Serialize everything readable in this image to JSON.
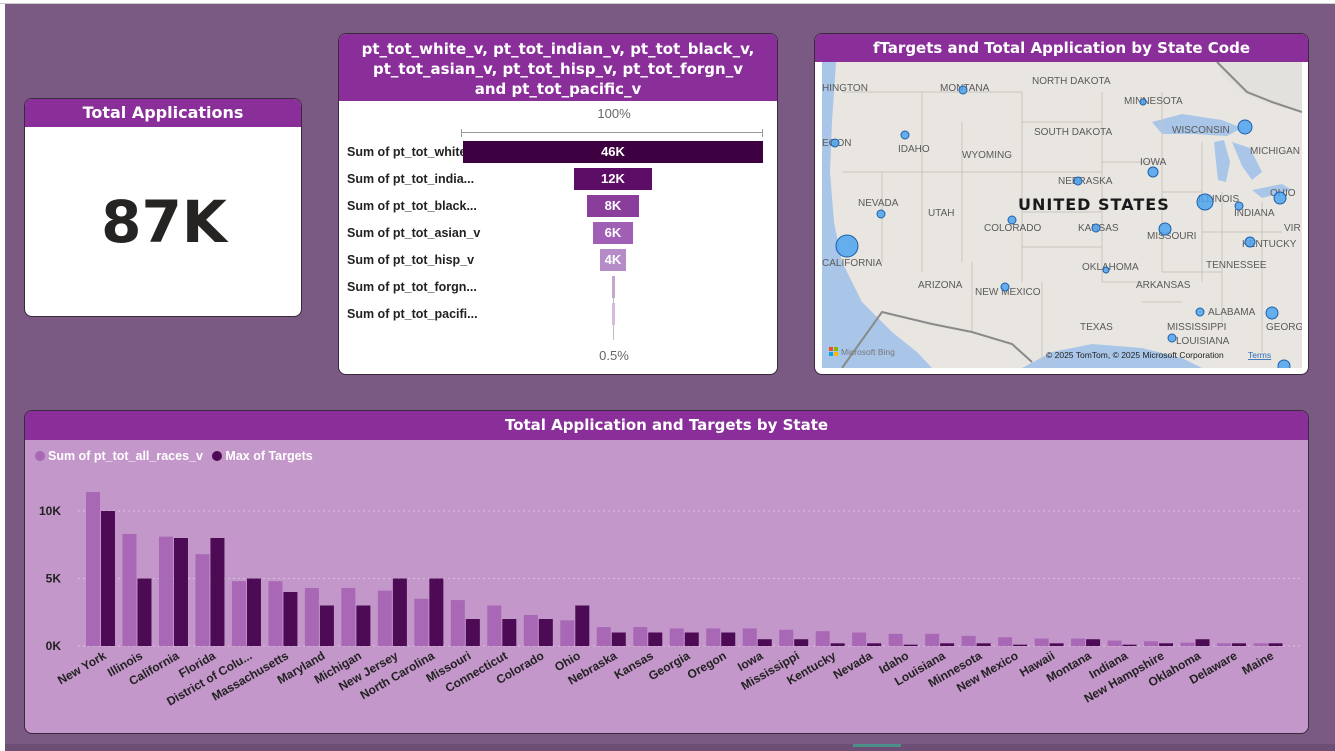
{
  "kpi": {
    "title": "Total Applications",
    "value": "87K"
  },
  "funnel": {
    "title": "pt_tot_white_v, pt_tot_indian_v, pt_tot_black_v, pt_tot_asian_v, pt_tot_hisp_v, pt_tot_forgn_v and pt_tot_pacific_v",
    "top_pct": "100%",
    "bottom_pct": "0.5%",
    "colors": [
      "#3d0040",
      "#5e0d67",
      "#8a3d9b",
      "#a05fb4",
      "#b58cc8",
      "#c5a6d1",
      "#d3bcdc"
    ],
    "rows": [
      {
        "label": "Sum of pt_tot_white...",
        "value": 46000,
        "display": "46K"
      },
      {
        "label": "Sum of pt_tot_india...",
        "value": 12000,
        "display": "12K"
      },
      {
        "label": "Sum of pt_tot_black...",
        "value": 8000,
        "display": "8K"
      },
      {
        "label": "Sum of pt_tot_asian_v",
        "value": 6000,
        "display": "6K"
      },
      {
        "label": "Sum of pt_tot_hisp_v",
        "value": 4000,
        "display": "4K"
      },
      {
        "label": "Sum of pt_tot_forgn...",
        "value": 230,
        "display": ""
      },
      {
        "label": "Sum of pt_tot_pacifi...",
        "value": 120,
        "display": ""
      }
    ]
  },
  "map": {
    "title": "fTargets and Total Application by State Code",
    "country_label": "UNITED STATES",
    "attribution": "© 2025 TomTom, © 2025 Microsoft Corporation",
    "terms": "Terms",
    "provider": "Microsoft Bing",
    "states": [
      "HINGTON",
      "MONTANA",
      "NORTH DAKOTA",
      "MINNESOTA",
      "SOUTH DAKOTA",
      "WISCONSIN",
      "MICHIGAN",
      "EGON",
      "IDAHO",
      "WYOMING",
      "IOWA",
      "NEBRASKA",
      "NEVADA",
      "UTAH",
      "COLORADO",
      "KANSAS",
      "MISSOURI",
      "ILLINOIS",
      "INDIANA",
      "OHIO",
      "CALIFORNIA",
      "KENTUCKY",
      "VIR",
      "OKLAHOMA",
      "TENNESSEE",
      "ARIZONA",
      "NEW MEXICO",
      "ARKANSAS",
      "ALABAMA",
      "GEORGIA",
      "MISSISSIPPI",
      "TEXAS",
      "LOUISIANA"
    ]
  },
  "chart_data": {
    "type": "bar",
    "title": "Total Application and Targets by State",
    "ylim": [
      0,
      12000
    ],
    "yticks": [
      "10K",
      "5K",
      "0K"
    ],
    "legend_position": "top-left",
    "categories": [
      "New York",
      "Illinois",
      "California",
      "Florida",
      "District of Colu...",
      "Massachusetts",
      "Maryland",
      "Michigan",
      "New Jersey",
      "North Carolina",
      "Missouri",
      "Connecticut",
      "Colorado",
      "Ohio",
      "Nebraska",
      "Kansas",
      "Georgia",
      "Oregon",
      "Iowa",
      "Mississippi",
      "Kentucky",
      "Nevada",
      "Idaho",
      "Louisiana",
      "Minnesota",
      "New Mexico",
      "Hawaii",
      "Montana",
      "Indiana",
      "New Hampshire",
      "Oklahoma",
      "Delaware",
      "Maine"
    ],
    "series": [
      {
        "name": "Sum of pt_tot_all_races_v",
        "color": "#a868b6",
        "values": [
          11400,
          8300,
          8100,
          6800,
          4800,
          4800,
          4300,
          4300,
          4100,
          3500,
          3400,
          3000,
          2300,
          1900,
          1400,
          1400,
          1300,
          1300,
          1300,
          1200,
          1100,
          1000,
          900,
          900,
          750,
          650,
          550,
          550,
          400,
          350,
          250,
          200,
          200
        ]
      },
      {
        "name": "Max of Targets",
        "color": "#4d0a55",
        "values": [
          10000,
          5000,
          8000,
          8000,
          5000,
          4000,
          3000,
          3000,
          5000,
          5000,
          2000,
          2000,
          2000,
          3000,
          1000,
          1000,
          1000,
          1000,
          500,
          500,
          200,
          200,
          100,
          200,
          200,
          100,
          200,
          500,
          100,
          200,
          500,
          200,
          200
        ]
      }
    ]
  }
}
